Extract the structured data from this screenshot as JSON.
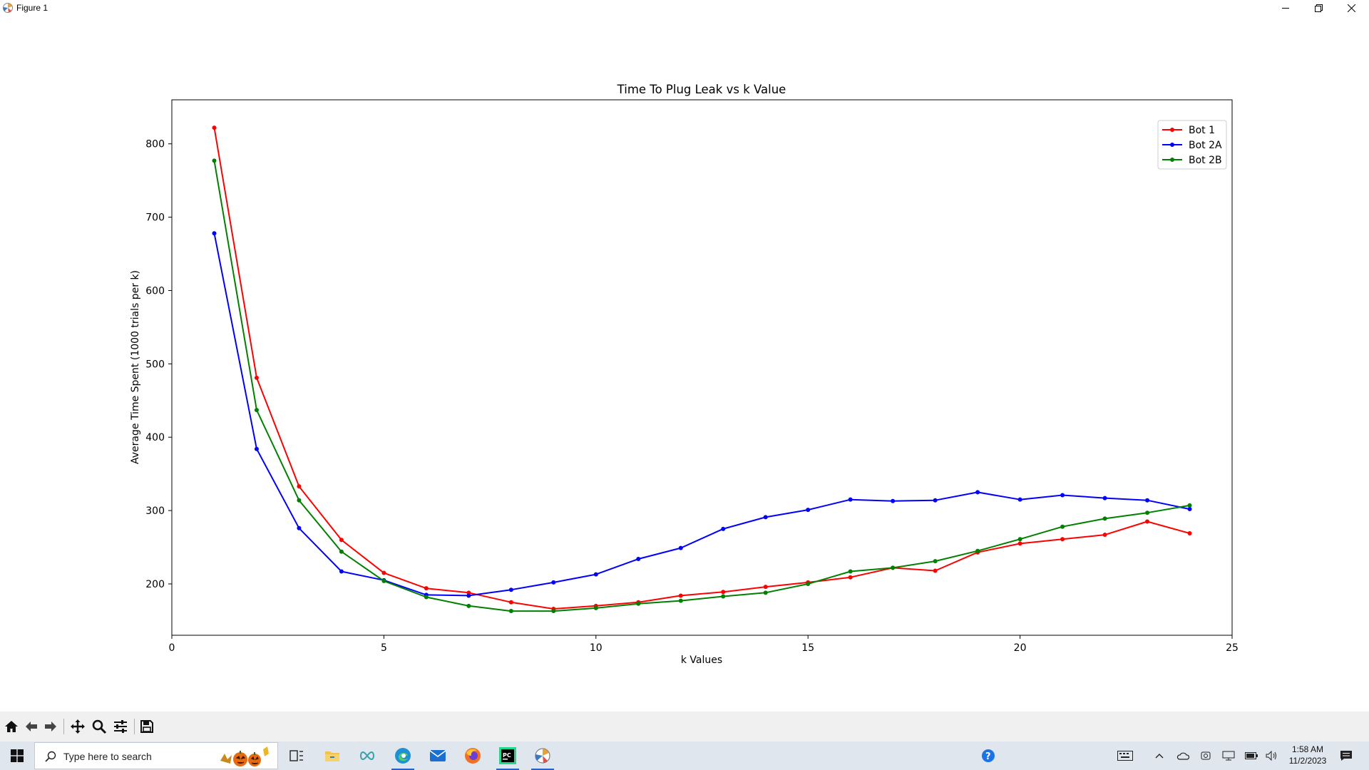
{
  "window": {
    "title": "Figure 1"
  },
  "chart_data": {
    "type": "line",
    "title": "Time To Plug Leak vs k Value",
    "xlabel": "k Values",
    "ylabel": "Average Time Spent (1000 trials per k)",
    "xlim": [
      0,
      25
    ],
    "ylim": [
      130,
      860
    ],
    "xticks": [
      0,
      5,
      10,
      15,
      20,
      25
    ],
    "yticks": [
      200,
      300,
      400,
      500,
      600,
      700,
      800
    ],
    "grid": false,
    "legend_position": "top-right",
    "x": [
      1,
      2,
      3,
      4,
      5,
      6,
      7,
      8,
      9,
      10,
      11,
      12,
      13,
      14,
      15,
      16,
      17,
      18,
      19,
      20,
      21,
      22,
      23,
      24
    ],
    "series": [
      {
        "name": "Bot 1",
        "color": "#ff0000",
        "values": [
          822,
          481,
          333,
          260,
          215,
          194,
          188,
          175,
          166,
          170,
          175,
          184,
          189,
          196,
          202,
          209,
          222,
          218,
          243,
          255,
          261,
          267,
          285,
          269
        ]
      },
      {
        "name": "Bot 2A",
        "color": "#0000ff",
        "values": [
          678,
          384,
          276,
          217,
          205,
          185,
          184,
          192,
          202,
          213,
          234,
          249,
          275,
          291,
          301,
          315,
          313,
          314,
          325,
          315,
          321,
          317,
          314,
          302
        ]
      },
      {
        "name": "Bot 2B",
        "color": "#008000",
        "values": [
          777,
          437,
          314,
          244,
          204,
          182,
          170,
          163,
          163,
          167,
          173,
          177,
          183,
          188,
          200,
          217,
          222,
          231,
          245,
          261,
          278,
          289,
          297,
          307
        ]
      }
    ]
  },
  "toolbar": {
    "buttons": [
      "home-icon",
      "back-arrow-icon",
      "forward-arrow-icon",
      "pan-icon",
      "zoom-icon",
      "configure-subplots-icon",
      "save-icon"
    ]
  },
  "taskbar": {
    "search_placeholder": "Type here to search",
    "time": "1:58 AM",
    "date": "11/2/2023"
  }
}
